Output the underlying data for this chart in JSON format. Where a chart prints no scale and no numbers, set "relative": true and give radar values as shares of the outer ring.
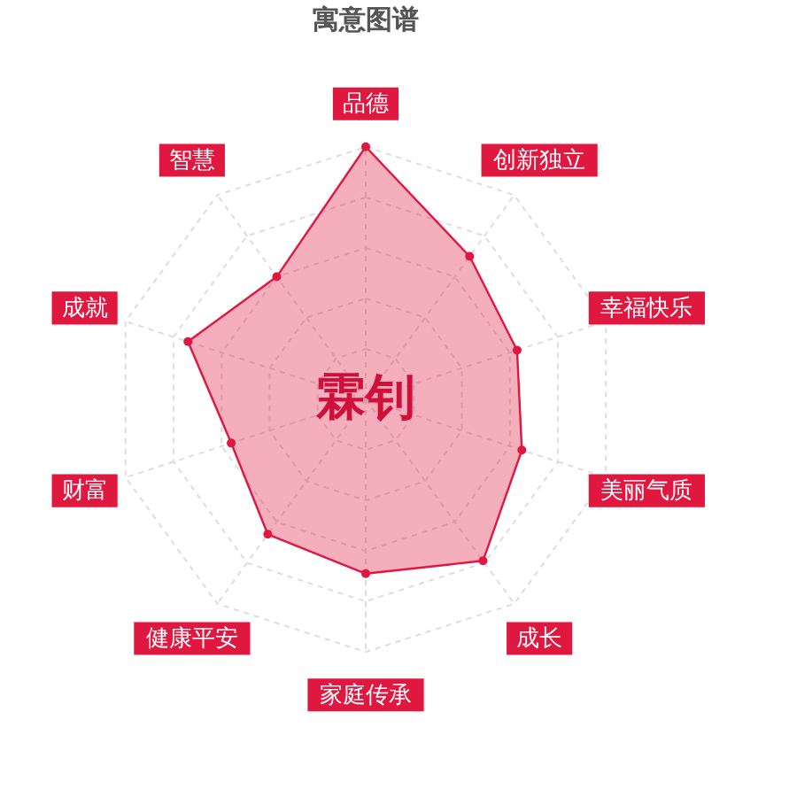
{
  "chart_data": {
    "type": "radar",
    "title": "寓意图谱",
    "relative": true,
    "grid": true,
    "marker": "circle",
    "categories": [
      "品德",
      "创新独立",
      "幸福快乐",
      "美丽气质",
      "成长",
      "家庭传承",
      "健康平安",
      "财富",
      "成就",
      "智慧"
    ],
    "series": [
      {
        "color": "#e0173f",
        "values": [
          1.0,
          0.7,
          0.63,
          0.65,
          0.79,
          0.69,
          0.66,
          0.56,
          0.74,
          0.6
        ]
      }
    ],
    "annotations": [
      "霖钊"
    ]
  }
}
